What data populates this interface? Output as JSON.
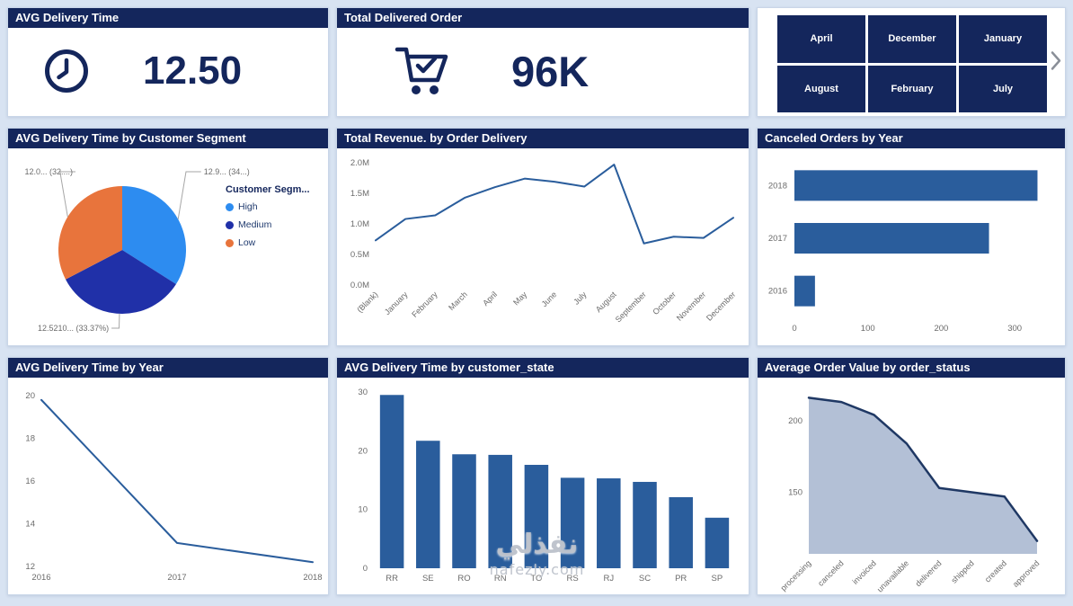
{
  "page": {
    "watermark_ar": "نفذلي",
    "watermark_en": "nafezly.com"
  },
  "theme": {
    "header_bg": "#14265C",
    "series_color": "#2A5D9C",
    "page_bg": "#D8E3F2",
    "value_color": "#14265C"
  },
  "kpi_cards": [
    {
      "title": "AVG Delivery Time",
      "icon": "clock-icon",
      "value": "12.50"
    },
    {
      "title": "Total Delivered Order",
      "icon": "cart-check-icon",
      "value": "96K"
    }
  ],
  "month_slicer": {
    "buttons": [
      "April",
      "December",
      "January",
      "August",
      "February",
      "July"
    ]
  },
  "chart_data": [
    {
      "id": "pie_segment",
      "type": "pie",
      "title": "AVG Delivery Time by Customer Segment",
      "legend_title": "Customer Segm...",
      "legend_position": "right",
      "slices": [
        {
          "name": "High",
          "value": 34.0,
          "label": "12.9... (34...)",
          "color": "#2D8CF0"
        },
        {
          "name": "Medium",
          "value": 33.37,
          "label": "12.5210... (33.37%)",
          "color": "#2030A8"
        },
        {
          "name": "Low",
          "value": 32.63,
          "label": "12.0... (32....)",
          "color": "#E8743C"
        }
      ]
    },
    {
      "id": "revenue_line",
      "type": "line",
      "title": "Total Revenue. by Order Delivery",
      "categories": [
        "(Blank)",
        "January",
        "February",
        "March",
        "April",
        "May",
        "June",
        "July",
        "August",
        "September",
        "October",
        "November",
        "December"
      ],
      "values": [
        0.73,
        1.08,
        1.14,
        1.43,
        1.6,
        1.74,
        1.69,
        1.61,
        1.97,
        0.68,
        0.79,
        0.77,
        1.1
      ],
      "unit": "M",
      "ylim": [
        0,
        2
      ],
      "y_ticks": [
        {
          "v": 0,
          "label": "0.0M"
        },
        {
          "v": 0.5,
          "label": "0.5M"
        },
        {
          "v": 1,
          "label": "1.0M"
        },
        {
          "v": 1.5,
          "label": "1.5M"
        },
        {
          "v": 2,
          "label": "2.0M"
        }
      ],
      "grid": false,
      "legend": "off"
    },
    {
      "id": "canceled_barh",
      "type": "bar",
      "orientation": "horizontal",
      "title": "Canceled Orders by Year",
      "categories": [
        "2018",
        "2017",
        "2016"
      ],
      "values": [
        331,
        265,
        28
      ],
      "xlim": [
        0,
        350
      ],
      "x_ticks": [
        {
          "v": 0,
          "label": "0"
        },
        {
          "v": 100,
          "label": "100"
        },
        {
          "v": 200,
          "label": "200"
        },
        {
          "v": 300,
          "label": "300"
        }
      ]
    },
    {
      "id": "avg_year_line",
      "type": "line",
      "title": "AVG Delivery Time by Year",
      "categories": [
        "2016",
        "2017",
        "2018"
      ],
      "values": [
        19.8,
        13.1,
        12.2
      ],
      "ylim": [
        12,
        20
      ],
      "y_ticks": [
        {
          "v": 12,
          "label": "12"
        },
        {
          "v": 14,
          "label": "14"
        },
        {
          "v": 16,
          "label": "16"
        },
        {
          "v": 18,
          "label": "18"
        },
        {
          "v": 20,
          "label": "20"
        }
      ]
    },
    {
      "id": "state_bar",
      "type": "bar",
      "orientation": "vertical",
      "title": "AVG Delivery Time by customer_state",
      "categories": [
        "RR",
        "SE",
        "RO",
        "RN",
        "TO",
        "RS",
        "RJ",
        "SC",
        "PR",
        "SP"
      ],
      "values": [
        29.5,
        21.7,
        19.4,
        19.3,
        17.6,
        15.4,
        15.3,
        14.7,
        12.1,
        8.6
      ],
      "ylim": [
        0,
        30
      ],
      "y_ticks": [
        {
          "v": 0,
          "label": "0"
        },
        {
          "v": 10,
          "label": "10"
        },
        {
          "v": 20,
          "label": "20"
        },
        {
          "v": 30,
          "label": "30"
        }
      ]
    },
    {
      "id": "status_area",
      "type": "area",
      "title": "Average Order Value by order_status",
      "categories": [
        "processing",
        "canceled",
        "invoiced",
        "unavailable",
        "delivered",
        "shipped",
        "created",
        "approved"
      ],
      "values": [
        216,
        213,
        204,
        184,
        153,
        150,
        147,
        116
      ],
      "ylim": [
        107,
        225
      ],
      "y_ticks": [
        {
          "v": 150,
          "label": "150"
        },
        {
          "v": 200,
          "label": "200"
        }
      ],
      "fill_color": "#B3C0D6",
      "line_color": "#1F3864"
    }
  ]
}
